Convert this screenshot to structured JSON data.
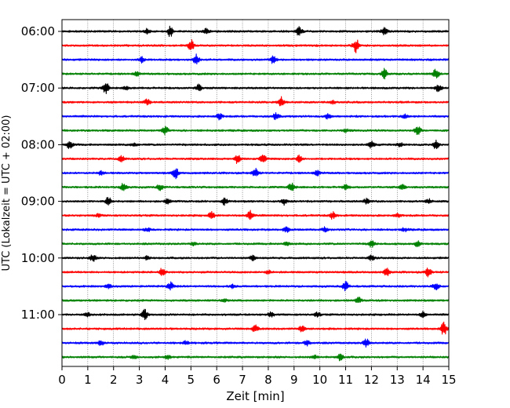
{
  "chart_data": {
    "type": "line",
    "title": "",
    "xlabel": "Zeit  [min]",
    "ylabel": "UTC (Lokalzeit = UTC + 02:00)",
    "xlim": [
      0,
      15
    ],
    "x_ticks": [
      "0",
      "1",
      "2",
      "3",
      "4",
      "5",
      "6",
      "7",
      "8",
      "9",
      "10",
      "11",
      "12",
      "13",
      "14",
      "15"
    ],
    "y_ticks": [
      "06:00",
      "07:00",
      "08:00",
      "09:00",
      "10:00",
      "11:00"
    ],
    "grid": "vertical dotted lines at each minute",
    "trace_interval_minutes": 15,
    "start_time": "06:00",
    "end_time": "11:45",
    "color_cycle": [
      "#000000",
      "#ff0000",
      "#0000ff",
      "#008000"
    ],
    "series": [
      {
        "start": "06:00",
        "color": "#000000",
        "events": [
          [
            4.2,
            0.9
          ],
          [
            9.2,
            0.8
          ],
          [
            12.5,
            0.8
          ],
          [
            5.6,
            0.5
          ],
          [
            3.3,
            0.4
          ]
        ]
      },
      {
        "start": "06:15",
        "color": "#ff0000",
        "events": [
          [
            5.0,
            1.0
          ],
          [
            11.4,
            1.2
          ]
        ]
      },
      {
        "start": "06:30",
        "color": "#0000ff",
        "events": [
          [
            5.2,
            0.9
          ],
          [
            8.2,
            0.7
          ],
          [
            3.1,
            0.5
          ]
        ]
      },
      {
        "start": "06:45",
        "color": "#008000",
        "events": [
          [
            12.5,
            0.9
          ],
          [
            14.5,
            0.9
          ],
          [
            2.9,
            0.3
          ]
        ]
      },
      {
        "start": "07:00",
        "color": "#000000",
        "events": [
          [
            1.7,
            1.0
          ],
          [
            5.3,
            0.6
          ],
          [
            14.6,
            0.6
          ],
          [
            2.5,
            0.3
          ]
        ]
      },
      {
        "start": "07:15",
        "color": "#ff0000",
        "events": [
          [
            8.5,
            0.9
          ],
          [
            3.3,
            0.5
          ],
          [
            10.5,
            0.3
          ]
        ]
      },
      {
        "start": "07:30",
        "color": "#0000ff",
        "events": [
          [
            8.3,
            0.6
          ],
          [
            6.1,
            0.5
          ],
          [
            13.3,
            0.4
          ],
          [
            10.3,
            0.4
          ]
        ]
      },
      {
        "start": "07:45",
        "color": "#008000",
        "events": [
          [
            4.0,
            0.7
          ],
          [
            13.8,
            0.8
          ],
          [
            11.0,
            0.3
          ]
        ]
      },
      {
        "start": "08:00",
        "color": "#000000",
        "events": [
          [
            0.3,
            0.7
          ],
          [
            12.0,
            0.7
          ],
          [
            14.5,
            0.8
          ],
          [
            13.1,
            0.4
          ],
          [
            2.8,
            0.3
          ]
        ]
      },
      {
        "start": "08:15",
        "color": "#ff0000",
        "events": [
          [
            6.8,
            0.8
          ],
          [
            7.8,
            0.7
          ],
          [
            9.2,
            0.6
          ],
          [
            2.3,
            0.5
          ]
        ]
      },
      {
        "start": "08:30",
        "color": "#0000ff",
        "events": [
          [
            4.4,
            1.0
          ],
          [
            7.5,
            0.8
          ],
          [
            9.9,
            0.4
          ],
          [
            1.5,
            0.3
          ]
        ]
      },
      {
        "start": "08:45",
        "color": "#008000",
        "events": [
          [
            2.4,
            0.8
          ],
          [
            8.9,
            0.8
          ],
          [
            3.8,
            0.5
          ],
          [
            11.0,
            0.4
          ],
          [
            13.2,
            0.4
          ]
        ]
      },
      {
        "start": "09:00",
        "color": "#000000",
        "events": [
          [
            1.8,
            0.8
          ],
          [
            6.3,
            0.6
          ],
          [
            8.6,
            0.6
          ],
          [
            11.8,
            0.5
          ],
          [
            4.1,
            0.4
          ],
          [
            14.2,
            0.4
          ]
        ]
      },
      {
        "start": "09:15",
        "color": "#ff0000",
        "events": [
          [
            7.3,
            0.9
          ],
          [
            10.5,
            0.6
          ],
          [
            5.8,
            0.6
          ],
          [
            1.4,
            0.3
          ],
          [
            13.0,
            0.3
          ]
        ]
      },
      {
        "start": "09:30",
        "color": "#0000ff",
        "events": [
          [
            8.7,
            0.4
          ],
          [
            10.2,
            0.4
          ],
          [
            3.3,
            0.3
          ],
          [
            13.3,
            0.3
          ]
        ]
      },
      {
        "start": "09:45",
        "color": "#008000",
        "events": [
          [
            12.0,
            0.6
          ],
          [
            13.8,
            0.6
          ],
          [
            5.1,
            0.3
          ],
          [
            8.7,
            0.3
          ]
        ]
      },
      {
        "start": "10:00",
        "color": "#000000",
        "events": [
          [
            1.2,
            0.6
          ],
          [
            7.4,
            0.4
          ],
          [
            12.0,
            0.4
          ],
          [
            3.3,
            0.3
          ]
        ]
      },
      {
        "start": "10:15",
        "color": "#ff0000",
        "events": [
          [
            3.9,
            0.8
          ],
          [
            12.6,
            0.6
          ],
          [
            14.2,
            0.8
          ],
          [
            8.0,
            0.3
          ]
        ]
      },
      {
        "start": "10:30",
        "color": "#0000ff",
        "events": [
          [
            4.2,
            0.7
          ],
          [
            11.0,
            0.8
          ],
          [
            14.5,
            0.7
          ],
          [
            1.8,
            0.3
          ],
          [
            6.6,
            0.3
          ]
        ]
      },
      {
        "start": "10:45",
        "color": "#008000",
        "events": [
          [
            11.5,
            0.5
          ],
          [
            6.3,
            0.2
          ]
        ]
      },
      {
        "start": "11:00",
        "color": "#000000",
        "events": [
          [
            3.2,
            0.9
          ],
          [
            8.1,
            0.4
          ],
          [
            9.9,
            0.4
          ],
          [
            14.0,
            0.5
          ],
          [
            1.0,
            0.3
          ]
        ]
      },
      {
        "start": "11:15",
        "color": "#ff0000",
        "events": [
          [
            7.5,
            0.6
          ],
          [
            9.3,
            0.5
          ],
          [
            14.8,
            1.2
          ]
        ]
      },
      {
        "start": "11:30",
        "color": "#0000ff",
        "events": [
          [
            11.8,
            0.8
          ],
          [
            9.5,
            0.5
          ],
          [
            1.5,
            0.4
          ],
          [
            4.8,
            0.3
          ]
        ]
      },
      {
        "start": "11:45",
        "color": "#008000",
        "events": [
          [
            10.8,
            0.6
          ],
          [
            2.8,
            0.3
          ],
          [
            9.8,
            0.3
          ],
          [
            4.1,
            0.3
          ]
        ]
      }
    ]
  }
}
